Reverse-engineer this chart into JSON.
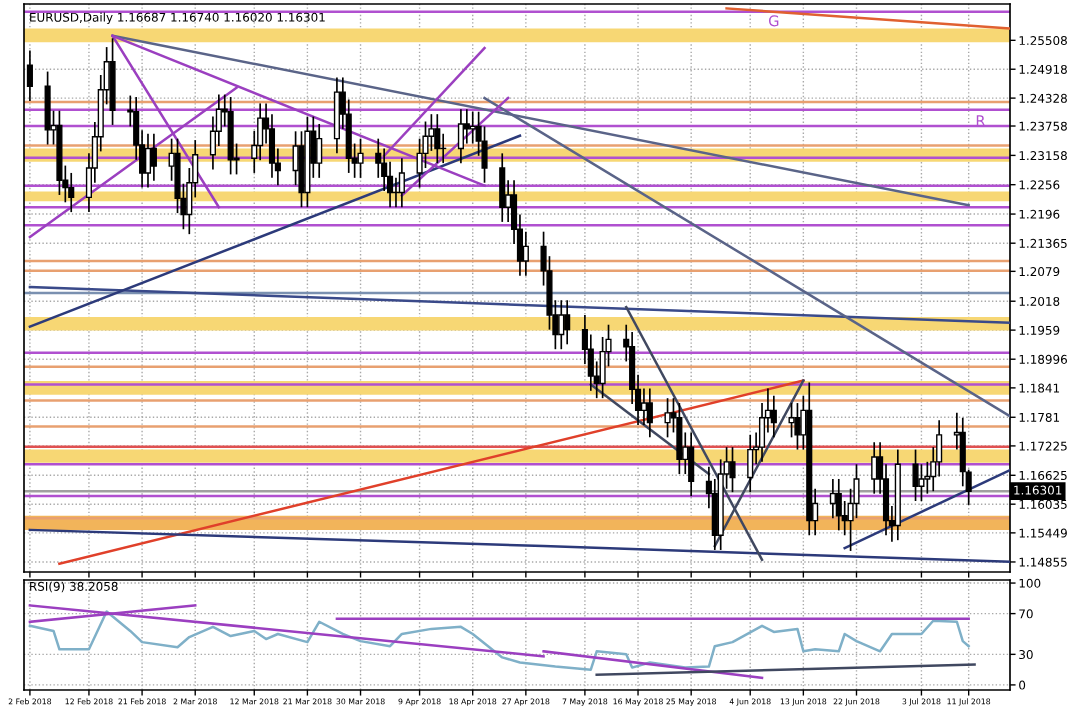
{
  "chart_data": [
    {
      "type": "candlestick",
      "title": "EURUSD,Daily 1.16687 1.16740 1.16020 1.16301",
      "color": "#000000",
      "x": [
        "2018-02-02",
        "2018-02-05",
        "2018-02-06",
        "2018-02-07",
        "2018-02-08",
        "2018-02-09",
        "2018-02-12",
        "2018-02-13",
        "2018-02-14",
        "2018-02-15",
        "2018-02-16",
        "2018-02-19",
        "2018-02-20",
        "2018-02-21",
        "2018-02-22",
        "2018-02-23",
        "2018-02-26",
        "2018-02-27",
        "2018-02-28",
        "2018-03-01",
        "2018-03-02",
        "2018-03-05",
        "2018-03-06",
        "2018-03-07",
        "2018-03-08",
        "2018-03-09",
        "2018-03-12",
        "2018-03-13",
        "2018-03-14",
        "2018-03-15",
        "2018-03-16",
        "2018-03-19",
        "2018-03-20",
        "2018-03-21",
        "2018-03-22",
        "2018-03-23",
        "2018-03-26",
        "2018-03-27",
        "2018-03-28",
        "2018-03-29",
        "2018-03-30",
        "2018-04-02",
        "2018-04-03",
        "2018-04-04",
        "2018-04-05",
        "2018-04-06",
        "2018-04-09",
        "2018-04-10",
        "2018-04-11",
        "2018-04-12",
        "2018-04-13",
        "2018-04-16",
        "2018-04-17",
        "2018-04-18",
        "2018-04-19",
        "2018-04-20",
        "2018-04-23",
        "2018-04-24",
        "2018-04-25",
        "2018-04-26",
        "2018-04-27",
        "2018-04-30",
        "2018-05-01",
        "2018-05-02",
        "2018-05-03",
        "2018-05-04",
        "2018-05-07",
        "2018-05-08",
        "2018-05-09",
        "2018-05-10",
        "2018-05-11",
        "2018-05-14",
        "2018-05-15",
        "2018-05-16",
        "2018-05-17",
        "2018-05-18",
        "2018-05-21",
        "2018-05-22",
        "2018-05-23",
        "2018-05-24",
        "2018-05-25",
        "2018-05-28",
        "2018-05-29",
        "2018-05-30",
        "2018-05-31",
        "2018-06-01",
        "2018-06-04",
        "2018-06-05",
        "2018-06-06",
        "2018-06-07",
        "2018-06-08",
        "2018-06-11",
        "2018-06-12",
        "2018-06-13",
        "2018-06-14",
        "2018-06-15",
        "2018-06-18",
        "2018-06-19",
        "2018-06-20",
        "2018-06-21",
        "2018-06-22",
        "2018-06-25",
        "2018-06-26",
        "2018-06-27",
        "2018-06-28",
        "2018-06-29",
        "2018-07-02",
        "2018-07-03",
        "2018-07-04",
        "2018-07-05",
        "2018-07-06",
        "2018-07-09",
        "2018-07-10",
        "2018-07-11"
      ],
      "ohlc": [
        [
          1.25,
          1.253,
          1.2427,
          1.2457
        ],
        [
          1.2457,
          1.2487,
          1.2338,
          1.2368
        ],
        [
          1.2368,
          1.2407,
          1.2338,
          1.2377
        ],
        [
          1.2377,
          1.2407,
          1.2235,
          1.2265
        ],
        [
          1.2265,
          1.2295,
          1.222,
          1.225
        ],
        [
          1.225,
          1.228,
          1.22,
          1.223
        ],
        [
          1.223,
          1.232,
          1.22,
          1.229
        ],
        [
          1.229,
          1.2384,
          1.226,
          1.2354
        ],
        [
          1.2354,
          1.248,
          1.2324,
          1.245
        ],
        [
          1.245,
          1.2537,
          1.242,
          1.2507
        ],
        [
          1.2507,
          1.2555,
          1.2378,
          1.2408
        ],
        [
          1.2408,
          1.2438,
          1.2375,
          1.2405
        ],
        [
          1.2405,
          1.2435,
          1.2307,
          1.2337
        ],
        [
          1.2337,
          1.2367,
          1.225,
          1.228
        ],
        [
          1.228,
          1.236,
          1.225,
          1.233
        ],
        [
          1.233,
          1.236,
          1.2264,
          1.2294
        ],
        [
          1.2294,
          1.235,
          1.2264,
          1.232
        ],
        [
          1.232,
          1.235,
          1.2198,
          1.2228
        ],
        [
          1.2228,
          1.2258,
          1.2165,
          1.2195
        ],
        [
          1.2195,
          1.229,
          1.2155,
          1.226
        ],
        [
          1.226,
          1.2347,
          1.223,
          1.2317
        ],
        [
          1.2317,
          1.2395,
          1.2287,
          1.2365
        ],
        [
          1.2365,
          1.244,
          1.2335,
          1.241
        ],
        [
          1.241,
          1.244,
          1.2375,
          1.2405
        ],
        [
          1.2405,
          1.2435,
          1.2277,
          1.2307
        ],
        [
          1.2307,
          1.234,
          1.2277,
          1.231
        ],
        [
          1.231,
          1.2366,
          1.228,
          1.2336
        ],
        [
          1.2336,
          1.2422,
          1.2306,
          1.2392
        ],
        [
          1.2392,
          1.2422,
          1.234,
          1.237
        ],
        [
          1.237,
          1.24,
          1.227,
          1.23
        ],
        [
          1.23,
          1.233,
          1.2255,
          1.2285
        ],
        [
          1.2285,
          1.2365,
          1.2255,
          1.2335
        ],
        [
          1.2335,
          1.2365,
          1.221,
          1.224
        ],
        [
          1.224,
          1.2395,
          1.221,
          1.2365
        ],
        [
          1.2365,
          1.2395,
          1.227,
          1.23
        ],
        [
          1.23,
          1.238,
          1.227,
          1.235
        ],
        [
          1.235,
          1.2475,
          1.232,
          1.2445
        ],
        [
          1.2445,
          1.2475,
          1.237,
          1.24
        ],
        [
          1.24,
          1.243,
          1.228,
          1.231
        ],
        [
          1.231,
          1.234,
          1.227,
          1.23
        ],
        [
          1.23,
          1.235,
          1.227,
          1.232
        ],
        [
          1.232,
          1.235,
          1.227,
          1.23
        ],
        [
          1.23,
          1.233,
          1.2243,
          1.2273
        ],
        [
          1.2273,
          1.2303,
          1.221,
          1.224
        ],
        [
          1.224,
          1.227,
          1.221,
          1.224
        ],
        [
          1.224,
          1.231,
          1.221,
          1.228
        ],
        [
          1.228,
          1.235,
          1.225,
          1.232
        ],
        [
          1.232,
          1.2385,
          1.229,
          1.2355
        ],
        [
          1.2355,
          1.24,
          1.2325,
          1.237
        ],
        [
          1.237,
          1.24,
          1.23,
          1.233
        ],
        [
          1.233,
          1.236,
          1.23,
          1.233
        ],
        [
          1.233,
          1.241,
          1.23,
          1.238
        ],
        [
          1.238,
          1.241,
          1.234,
          1.237
        ],
        [
          1.237,
          1.2405,
          1.234,
          1.2375
        ],
        [
          1.2375,
          1.2405,
          1.2315,
          1.2345
        ],
        [
          1.2345,
          1.2375,
          1.226,
          1.229
        ],
        [
          1.229,
          1.232,
          1.218,
          1.221
        ],
        [
          1.221,
          1.2265,
          1.218,
          1.2235
        ],
        [
          1.2235,
          1.2265,
          1.2135,
          1.2165
        ],
        [
          1.2165,
          1.2195,
          1.207,
          1.21
        ],
        [
          1.21,
          1.216,
          1.207,
          1.213
        ],
        [
          1.213,
          1.216,
          1.205,
          1.208
        ],
        [
          1.208,
          1.211,
          1.196,
          1.199
        ],
        [
          1.199,
          1.202,
          1.192,
          1.195
        ],
        [
          1.195,
          1.202,
          1.192,
          1.199
        ],
        [
          1.199,
          1.202,
          1.193,
          1.196
        ],
        [
          1.196,
          1.199,
          1.189,
          1.192
        ],
        [
          1.192,
          1.195,
          1.1835,
          1.1865
        ],
        [
          1.1865,
          1.1895,
          1.182,
          1.185
        ],
        [
          1.185,
          1.1945,
          1.182,
          1.1915
        ],
        [
          1.1915,
          1.197,
          1.1885,
          1.194
        ],
        [
          1.194,
          1.197,
          1.1895,
          1.1925
        ],
        [
          1.1925,
          1.1955,
          1.1808,
          1.1838
        ],
        [
          1.1838,
          1.1868,
          1.1765,
          1.1795
        ],
        [
          1.1795,
          1.184,
          1.1765,
          1.181
        ],
        [
          1.181,
          1.184,
          1.174,
          1.177
        ],
        [
          1.177,
          1.182,
          1.174,
          1.179
        ],
        [
          1.179,
          1.182,
          1.175,
          1.178
        ],
        [
          1.178,
          1.181,
          1.1665,
          1.1695
        ],
        [
          1.1695,
          1.175,
          1.1665,
          1.172
        ],
        [
          1.172,
          1.175,
          1.162,
          1.165
        ],
        [
          1.165,
          1.168,
          1.1595,
          1.1625
        ],
        [
          1.1625,
          1.1655,
          1.151,
          1.154
        ],
        [
          1.154,
          1.1695,
          1.151,
          1.1665
        ],
        [
          1.1665,
          1.172,
          1.1635,
          1.169
        ],
        [
          1.169,
          1.172,
          1.1628,
          1.1658
        ],
        [
          1.1658,
          1.1745,
          1.1628,
          1.1715
        ],
        [
          1.1715,
          1.175,
          1.1685,
          1.172
        ],
        [
          1.172,
          1.181,
          1.169,
          1.178
        ],
        [
          1.178,
          1.184,
          1.175,
          1.1795
        ],
        [
          1.1795,
          1.1825,
          1.174,
          1.177
        ],
        [
          1.177,
          1.181,
          1.174,
          1.178
        ],
        [
          1.178,
          1.181,
          1.1715,
          1.1745
        ],
        [
          1.1745,
          1.1825,
          1.1715,
          1.1795
        ],
        [
          1.1795,
          1.1852,
          1.154,
          1.157
        ],
        [
          1.157,
          1.1635,
          1.154,
          1.1605
        ],
        [
          1.1605,
          1.1655,
          1.1575,
          1.1625
        ],
        [
          1.1625,
          1.1655,
          1.155,
          1.158
        ],
        [
          1.158,
          1.161,
          1.154,
          1.157
        ],
        [
          1.157,
          1.1635,
          1.1508,
          1.1605
        ],
        [
          1.1605,
          1.1685,
          1.1575,
          1.1655
        ],
        [
          1.1655,
          1.173,
          1.1625,
          1.17
        ],
        [
          1.17,
          1.173,
          1.1625,
          1.1655
        ],
        [
          1.1655,
          1.1685,
          1.154,
          1.157
        ],
        [
          1.157,
          1.16,
          1.1527,
          1.156
        ],
        [
          1.156,
          1.1715,
          1.153,
          1.1685
        ],
        [
          1.1685,
          1.1715,
          1.161,
          1.164
        ],
        [
          1.164,
          1.1685,
          1.161,
          1.1655
        ],
        [
          1.1655,
          1.169,
          1.1625,
          1.166
        ],
        [
          1.166,
          1.172,
          1.163,
          1.169
        ],
        [
          1.169,
          1.1775,
          1.166,
          1.1745
        ],
        [
          1.1745,
          1.179,
          1.1715,
          1.175
        ],
        [
          1.175,
          1.178,
          1.164,
          1.167
        ],
        [
          1.1669,
          1.1674,
          1.1602,
          1.163
        ]
      ],
      "series": [
        {
          "type": "line",
          "color": "#5a6488",
          "x": [
            "2018-02-16",
            "2018-07-11"
          ],
          "values": [
            1.256,
            1.2214
          ]
        },
        {
          "type": "line",
          "color": "#3a4a8a",
          "x": [
            "2018-02-02",
            "2018-07-18"
          ],
          "values": [
            1.2047,
            1.1974
          ]
        },
        {
          "type": "line",
          "color": "#2c3a7a",
          "x": [
            "2018-02-02",
            "2018-04-26"
          ],
          "values": [
            1.1966,
            1.2356
          ]
        },
        {
          "type": "line",
          "color": "#5a6488",
          "x": [
            "2018-04-20",
            "2018-07-18"
          ],
          "values": [
            1.2433,
            1.1783
          ]
        },
        {
          "type": "line",
          "color": "#e0402a",
          "x": [
            "2018-02-07",
            "2018-06-13"
          ],
          "values": [
            1.1482,
            1.1856
          ]
        },
        {
          "type": "line",
          "color": "#2c3a7a",
          "x": [
            "2018-02-02",
            "2018-04-30",
            "2018-07-18"
          ],
          "values": [
            1.1551,
            1.1518,
            1.1486
          ]
        },
        {
          "type": "line",
          "color": "#2c3a7a",
          "x": [
            "2018-06-20",
            "2018-07-18"
          ],
          "values": [
            1.1514,
            1.1673
          ]
        },
        {
          "type": "line",
          "color": "#9b3fc0",
          "x": [
            "2018-02-16",
            "2018-03-06"
          ],
          "values": [
            1.256,
            1.221
          ]
        },
        {
          "type": "line",
          "color": "#9b3fc0",
          "x": [
            "2018-02-16",
            "2018-04-20"
          ],
          "values": [
            1.256,
            1.2254
          ]
        },
        {
          "type": "line",
          "color": "#9b3fc0",
          "x": [
            "2018-02-02",
            "2018-03-09"
          ],
          "values": [
            1.2149,
            1.2454
          ]
        },
        {
          "type": "line",
          "color": "#9b3fc0",
          "x": [
            "2018-04-06",
            "2018-04-24"
          ],
          "values": [
            1.2234,
            1.2433
          ]
        },
        {
          "type": "line",
          "color": "#9b3fc0",
          "x": [
            "2018-04-03",
            "2018-04-20"
          ],
          "values": [
            1.2315,
            1.2535
          ]
        },
        {
          "type": "line",
          "color": "#404860",
          "x": [
            "2018-05-14",
            "2018-06-06"
          ],
          "values": [
            1.2006,
            1.149
          ]
        },
        {
          "type": "line",
          "color": "#404860",
          "x": [
            "2018-05-29",
            "2018-06-13"
          ],
          "values": [
            1.1518,
            1.1856
          ]
        },
        {
          "type": "line",
          "color": "#404860",
          "x": [
            "2018-05-08",
            "2018-05-28"
          ],
          "values": [
            1.1848,
            1.1665
          ]
        },
        {
          "type": "line",
          "color": "#e06030",
          "x": [
            "2018-05-31",
            "2018-07-18"
          ],
          "values": [
            1.2616,
            1.2575
          ]
        }
      ],
      "ref_lines": [
        {
          "axis": "y",
          "value": 1.2609,
          "color": "#b050d0"
        },
        {
          "axis": "y",
          "value": 1.2409,
          "color": "#b050d0"
        },
        {
          "axis": "y",
          "value": 1.2376,
          "color": "#b050d0"
        },
        {
          "axis": "y",
          "value": 1.2311,
          "color": "#b050d0"
        },
        {
          "axis": "y",
          "value": 1.2254,
          "color": "#b050d0"
        },
        {
          "axis": "y",
          "value": 1.221,
          "color": "#b050d0"
        },
        {
          "axis": "y",
          "value": 1.2173,
          "color": "#b050d0"
        },
        {
          "axis": "y",
          "value": 1.1913,
          "color": "#b050d0"
        },
        {
          "axis": "y",
          "value": 1.1848,
          "color": "#b050d0"
        },
        {
          "axis": "y",
          "value": 1.1685,
          "color": "#b050d0"
        },
        {
          "axis": "y",
          "value": 1.162,
          "color": "#b050d0"
        },
        {
          "axis": "y",
          "value": 1.2425,
          "color": "#e8a070"
        },
        {
          "axis": "y",
          "value": 1.2336,
          "color": "#e8a070"
        },
        {
          "axis": "y",
          "value": 1.21,
          "color": "#e8a070"
        },
        {
          "axis": "y",
          "value": 1.208,
          "color": "#e8a070"
        },
        {
          "axis": "y",
          "value": 1.1884,
          "color": "#e8a070"
        },
        {
          "axis": "y",
          "value": 1.1815,
          "color": "#e8a070"
        },
        {
          "axis": "y",
          "value": 1.1762,
          "color": "#e8a070"
        },
        {
          "axis": "y",
          "value": 1.1575,
          "color": "#e8a070"
        },
        {
          "axis": "y",
          "value": 1.1721,
          "color": "#e05050"
        },
        {
          "axis": "y",
          "value": 1.2035,
          "color": "#7a90b0"
        },
        {
          "axis": "y",
          "value": 1.16301,
          "label": "1.16301",
          "color": "#a0a0a0"
        }
      ],
      "bands": [
        {
          "axis": "y",
          "from": 1.2547,
          "to": 1.2575,
          "color": "#f7d774"
        },
        {
          "axis": "y",
          "from": 1.2303,
          "to": 1.233,
          "color": "#f7d774"
        },
        {
          "axis": "y",
          "from": 1.2222,
          "to": 1.2242,
          "color": "#f7d774"
        },
        {
          "axis": "y",
          "from": 1.1958,
          "to": 1.1986,
          "color": "#f7d774"
        },
        {
          "axis": "y",
          "from": 1.1827,
          "to": 1.1855,
          "color": "#f7d774"
        },
        {
          "axis": "y",
          "from": 1.1688,
          "to": 1.1715,
          "color": "#f7d774"
        },
        {
          "axis": "y",
          "from": 1.1551,
          "to": 1.158,
          "color": "#f2b45a"
        }
      ],
      "annotations": [
        {
          "text": "G",
          "x": "2018-06-08",
          "y": 1.2588
        },
        {
          "text": "R",
          "x": "2018-07-13",
          "y": 1.2384
        }
      ],
      "xlim": [
        "2018-02-01",
        "2018-07-18"
      ],
      "xticks": [
        {
          "value": "2018-02-02",
          "label": null
        },
        {
          "value": "2018-02-12",
          "label": null
        },
        {
          "value": "2018-02-21",
          "label": null
        },
        {
          "value": "2018-03-02",
          "label": null
        },
        {
          "value": "2018-03-12",
          "label": null
        },
        {
          "value": "2018-03-21",
          "label": null
        },
        {
          "value": "2018-03-30",
          "label": null
        },
        {
          "value": "2018-04-09",
          "label": null
        },
        {
          "value": "2018-04-18",
          "label": null
        },
        {
          "value": "2018-04-27",
          "label": null
        },
        {
          "value": "2018-05-07",
          "label": null
        },
        {
          "value": "2018-05-16",
          "label": null
        },
        {
          "value": "2018-05-25",
          "label": null
        },
        {
          "value": "2018-06-04",
          "label": null
        },
        {
          "value": "2018-06-13",
          "label": null
        },
        {
          "value": "2018-06-22",
          "label": null
        },
        {
          "value": "2018-07-03",
          "label": null
        },
        {
          "value": "2018-07-11",
          "label": null
        }
      ],
      "ylim": [
        1.1465,
        1.2625
      ],
      "yticks": [
        1.14855,
        1.15449,
        1.16035,
        1.16625,
        1.17225,
        1.1781,
        1.1841,
        1.18996,
        1.1959,
        1.2018,
        1.2079,
        1.21365,
        1.2196,
        1.2256,
        1.23158,
        1.23758,
        1.24328,
        1.24918,
        1.25508
      ],
      "grid": true,
      "tick_labels": "y"
    },
    {
      "type": "line",
      "title": "RSI(9) 38.2058",
      "color": "#7fb0c8",
      "x": [
        "2018-02-02",
        "2018-02-06",
        "2018-02-07",
        "2018-02-12",
        "2018-02-15",
        "2018-02-19",
        "2018-02-21",
        "2018-02-27",
        "2018-03-01",
        "2018-03-05",
        "2018-03-08",
        "2018-03-12",
        "2018-03-14",
        "2018-03-16",
        "2018-03-21",
        "2018-03-23",
        "2018-03-27",
        "2018-03-30",
        "2018-04-04",
        "2018-04-06",
        "2018-04-11",
        "2018-04-16",
        "2018-04-18",
        "2018-04-23",
        "2018-04-26",
        "2018-05-02",
        "2018-05-08",
        "2018-05-09",
        "2018-05-14",
        "2018-05-15",
        "2018-05-18",
        "2018-05-24",
        "2018-05-28",
        "2018-05-29",
        "2018-06-01",
        "2018-06-06",
        "2018-06-08",
        "2018-06-12",
        "2018-06-13",
        "2018-06-15",
        "2018-06-19",
        "2018-06-20",
        "2018-06-22",
        "2018-06-26",
        "2018-06-28",
        "2018-07-03",
        "2018-07-05",
        "2018-07-09",
        "2018-07-10",
        "2018-07-11"
      ],
      "values": [
        58,
        53,
        35,
        35,
        72,
        53,
        42,
        37,
        47,
        57,
        48,
        53,
        45,
        50,
        42,
        62,
        50,
        43,
        38,
        50,
        55,
        57,
        50,
        27,
        22,
        18,
        15,
        33,
        30,
        17,
        22,
        17,
        18,
        38,
        42,
        58,
        52,
        55,
        33,
        35,
        33,
        50,
        43,
        33,
        50,
        50,
        63,
        62,
        43,
        38
      ],
      "series": [
        {
          "type": "line",
          "color": "#9b3fc0",
          "x": [
            "2018-02-02",
            "2018-04-30"
          ],
          "values": [
            78,
            28
          ]
        },
        {
          "type": "line",
          "color": "#9b3fc0",
          "x": [
            "2018-04-30",
            "2018-06-06"
          ],
          "values": [
            33,
            7
          ]
        },
        {
          "type": "line",
          "color": "#9b3fc0",
          "x": [
            "2018-02-02",
            "2018-03-02"
          ],
          "values": [
            62,
            78
          ]
        },
        {
          "type": "line",
          "color": "#9b3fc0",
          "x": [
            "2018-03-26",
            "2018-07-11"
          ],
          "values": [
            65,
            65
          ]
        },
        {
          "type": "line",
          "color": "#404860",
          "x": [
            "2018-05-09",
            "2018-07-12"
          ],
          "values": [
            10,
            20
          ]
        }
      ],
      "xlim": [
        "2018-02-01",
        "2018-07-18"
      ],
      "xticks": [
        {
          "value": "2018-02-02",
          "label": "2 Feb 2018"
        },
        {
          "value": "2018-02-12",
          "label": "12 Feb 2018"
        },
        {
          "value": "2018-02-21",
          "label": "21 Feb 2018"
        },
        {
          "value": "2018-03-02",
          "label": "2 Mar 2018"
        },
        {
          "value": "2018-03-12",
          "label": "12 Mar 2018"
        },
        {
          "value": "2018-03-21",
          "label": "21 Mar 2018"
        },
        {
          "value": "2018-03-30",
          "label": "30 Mar 2018"
        },
        {
          "value": "2018-04-09",
          "label": "9 Apr 2018"
        },
        {
          "value": "2018-04-18",
          "label": "18 Apr 2018"
        },
        {
          "value": "2018-04-27",
          "label": "27 Apr 2018"
        },
        {
          "value": "2018-05-07",
          "label": "7 May 2018"
        },
        {
          "value": "2018-05-16",
          "label": "16 May 2018"
        },
        {
          "value": "2018-05-25",
          "label": "25 May 2018"
        },
        {
          "value": "2018-06-04",
          "label": "4 Jun 2018"
        },
        {
          "value": "2018-06-13",
          "label": "13 Jun 2018"
        },
        {
          "value": "2018-06-22",
          "label": "22 Jun 2018"
        },
        {
          "value": "2018-07-03",
          "label": "3 Jul 2018"
        },
        {
          "value": "2018-07-11",
          "label": "11 Jul 2018"
        }
      ],
      "ylim": [
        -5,
        103
      ],
      "yticks": [
        0,
        30,
        70,
        100
      ],
      "grid": true
    }
  ]
}
